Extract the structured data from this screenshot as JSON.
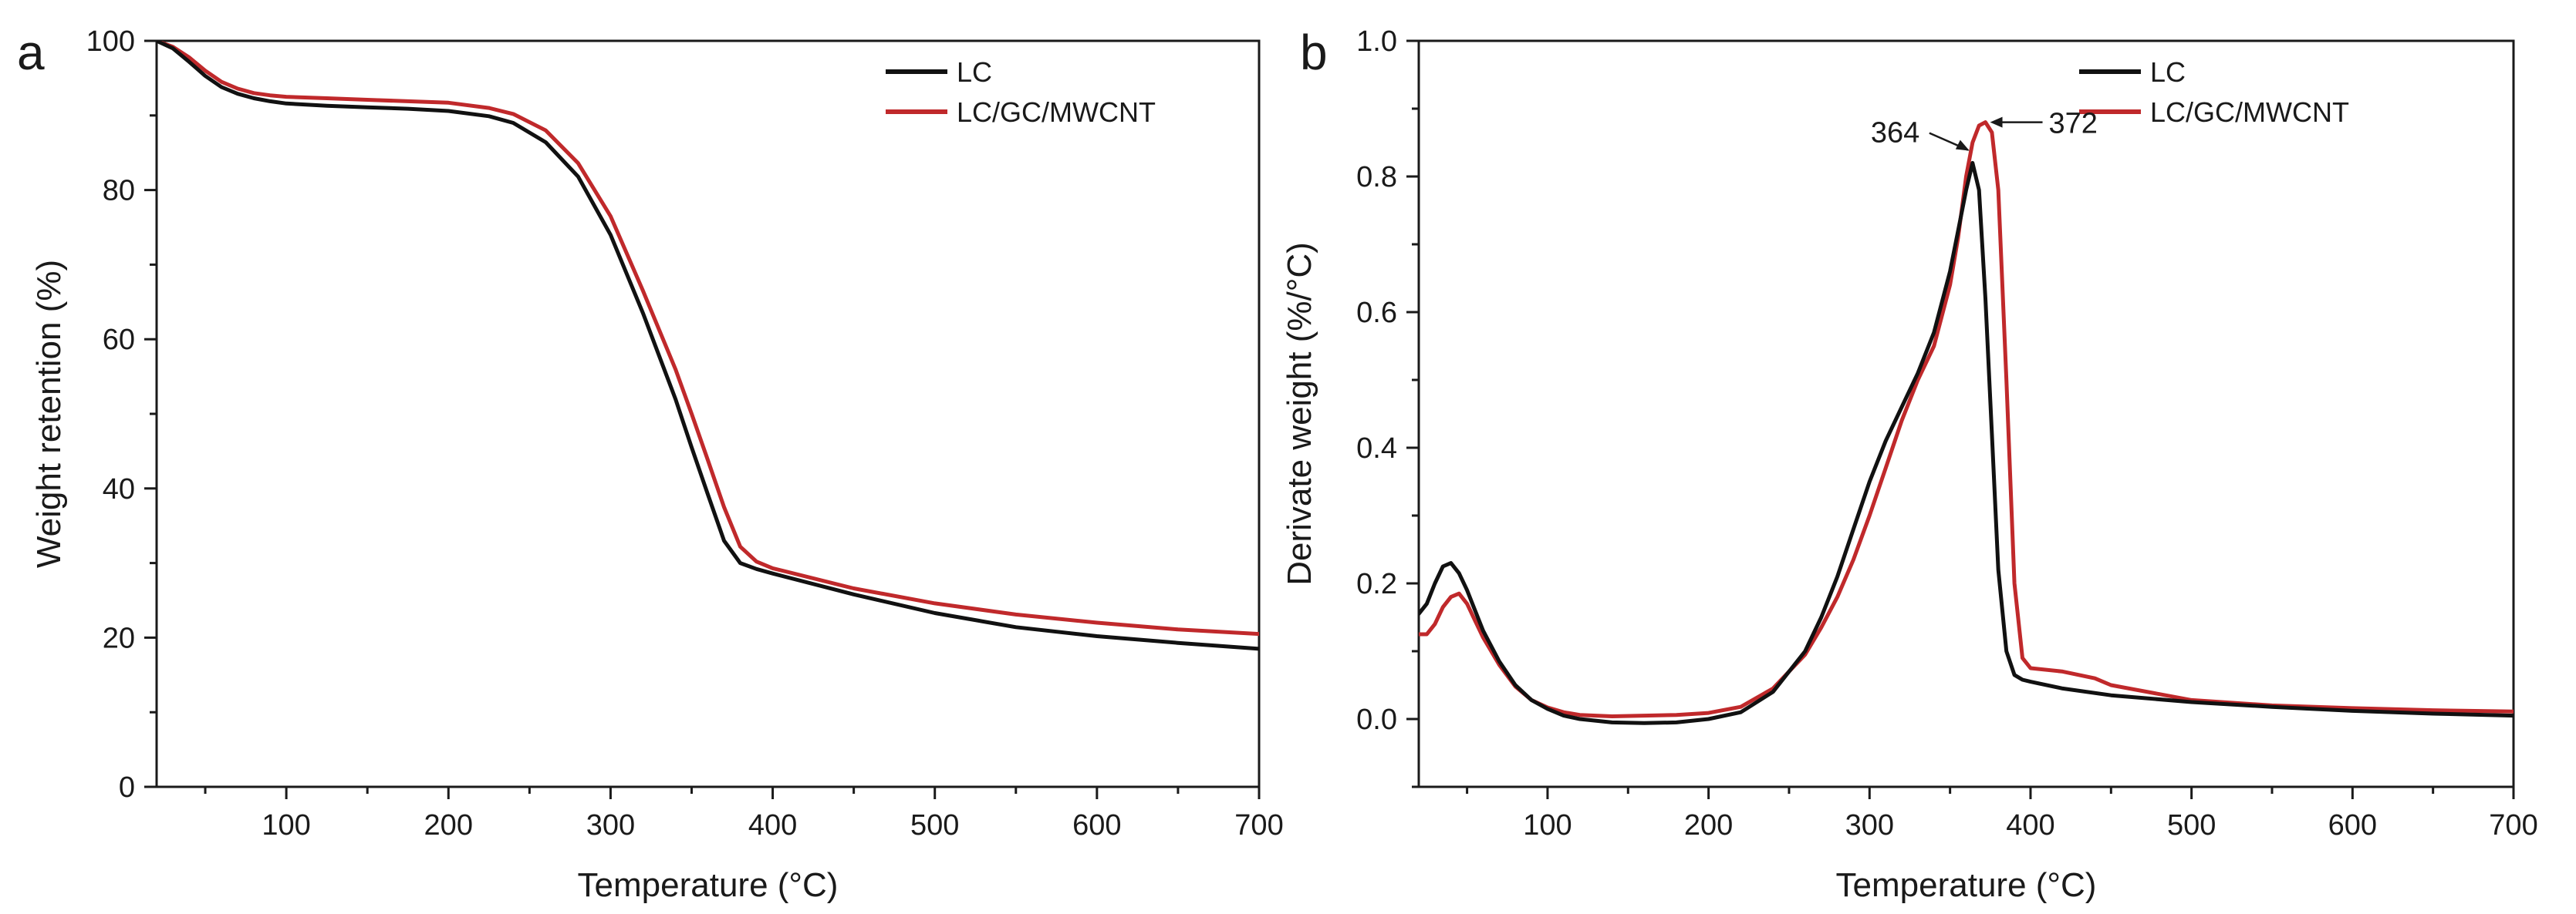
{
  "chart_data": [
    {
      "panel_label": "a",
      "type": "line",
      "title": "",
      "xlabel": "Temperature (°C)",
      "ylabel": "Weight retention (%)",
      "xlim": [
        20,
        700
      ],
      "ylim": [
        0,
        100
      ],
      "xticks": [
        100,
        200,
        300,
        400,
        500,
        600,
        700
      ],
      "yticks": [
        0,
        20,
        40,
        60,
        80,
        100
      ],
      "legend_position": "top-right",
      "series": [
        {
          "name": "LC",
          "color": "#111111",
          "x": [
            20,
            30,
            40,
            50,
            60,
            70,
            80,
            90,
            100,
            125,
            150,
            175,
            200,
            225,
            240,
            260,
            280,
            300,
            320,
            340,
            350,
            360,
            370,
            380,
            390,
            400,
            450,
            500,
            550,
            600,
            650,
            700
          ],
          "y": [
            100,
            99,
            97.2,
            95.3,
            93.8,
            92.9,
            92.3,
            91.9,
            91.6,
            91.3,
            91.1,
            90.9,
            90.6,
            89.9,
            89,
            86.4,
            81.8,
            74,
            63.5,
            52,
            45.5,
            39.2,
            33,
            30,
            29.2,
            28.6,
            25.8,
            23.3,
            21.4,
            20.2,
            19.3,
            18.5
          ]
        },
        {
          "name": "LC/GC/MWCNT",
          "color": "#c0292b",
          "x": [
            20,
            30,
            40,
            50,
            60,
            70,
            80,
            90,
            100,
            125,
            150,
            175,
            200,
            225,
            240,
            260,
            280,
            300,
            320,
            340,
            350,
            360,
            370,
            380,
            390,
            400,
            450,
            500,
            550,
            600,
            650,
            700
          ],
          "y": [
            100,
            99.2,
            97.8,
            96,
            94.5,
            93.6,
            93,
            92.7,
            92.5,
            92.3,
            92.1,
            91.9,
            91.7,
            91,
            90.2,
            88,
            83.6,
            76.5,
            66.5,
            56,
            50,
            43.8,
            37.5,
            32.2,
            30.2,
            29.3,
            26.6,
            24.6,
            23.1,
            22,
            21.1,
            20.5
          ]
        }
      ]
    },
    {
      "panel_label": "b",
      "type": "line",
      "title": "",
      "xlabel": "Temperature (°C)",
      "ylabel": "Derivate weight (%/°C)",
      "xlim": [
        20,
        700
      ],
      "ylim": [
        -0.1,
        1.0
      ],
      "xticks": [
        100,
        200,
        300,
        400,
        500,
        600,
        700
      ],
      "yticks": [
        0.0,
        0.2,
        0.4,
        0.6,
        0.8,
        1.0
      ],
      "legend_position": "top-right",
      "annotations": [
        {
          "text": "364",
          "x": 364,
          "y": 0.83
        },
        {
          "text": "372",
          "x": 372,
          "y": 0.88
        }
      ],
      "series": [
        {
          "name": "LC",
          "color": "#111111",
          "x": [
            20,
            25,
            30,
            35,
            40,
            45,
            50,
            55,
            60,
            70,
            80,
            90,
            100,
            110,
            120,
            140,
            160,
            180,
            200,
            220,
            240,
            260,
            270,
            280,
            290,
            300,
            310,
            320,
            330,
            340,
            350,
            355,
            360,
            364,
            368,
            372,
            376,
            380,
            385,
            390,
            395,
            400,
            420,
            450,
            500,
            550,
            600,
            650,
            700
          ],
          "y": [
            0.155,
            0.17,
            0.2,
            0.225,
            0.23,
            0.215,
            0.19,
            0.16,
            0.13,
            0.085,
            0.05,
            0.028,
            0.015,
            0.005,
            0.0,
            -0.005,
            -0.006,
            -0.005,
            0.0,
            0.01,
            0.04,
            0.1,
            0.15,
            0.21,
            0.28,
            0.35,
            0.41,
            0.46,
            0.51,
            0.57,
            0.66,
            0.72,
            0.78,
            0.82,
            0.78,
            0.62,
            0.42,
            0.22,
            0.1,
            0.065,
            0.058,
            0.055,
            0.045,
            0.035,
            0.025,
            0.018,
            0.012,
            0.008,
            0.005
          ]
        },
        {
          "name": "LC/GC/MWCNT",
          "color": "#c0292b",
          "x": [
            20,
            25,
            30,
            35,
            40,
            45,
            50,
            55,
            60,
            70,
            80,
            90,
            100,
            110,
            120,
            140,
            160,
            180,
            200,
            220,
            240,
            260,
            270,
            280,
            290,
            300,
            310,
            320,
            330,
            340,
            350,
            355,
            360,
            364,
            368,
            372,
            376,
            380,
            385,
            390,
            395,
            400,
            420,
            440,
            450,
            500,
            550,
            600,
            650,
            700
          ],
          "y": [
            0.125,
            0.125,
            0.14,
            0.165,
            0.18,
            0.185,
            0.17,
            0.145,
            0.12,
            0.08,
            0.048,
            0.028,
            0.017,
            0.01,
            0.006,
            0.004,
            0.005,
            0.006,
            0.009,
            0.018,
            0.045,
            0.095,
            0.135,
            0.18,
            0.235,
            0.3,
            0.37,
            0.44,
            0.5,
            0.55,
            0.64,
            0.71,
            0.8,
            0.85,
            0.875,
            0.88,
            0.865,
            0.78,
            0.5,
            0.2,
            0.09,
            0.075,
            0.07,
            0.06,
            0.05,
            0.028,
            0.02,
            0.016,
            0.013,
            0.011
          ]
        }
      ]
    }
  ]
}
